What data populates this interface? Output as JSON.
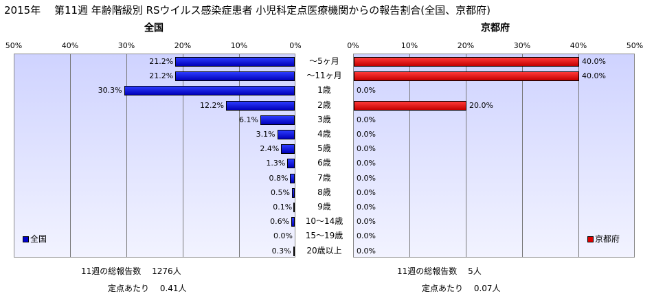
{
  "title": "2015年　 第11週 年齢階級別 RSウイルス感染症患者 小児科定点医療機関からの報告割合(全国、京都府)",
  "categories": [
    "～5ヶ月",
    "～11ヶ月",
    "1歳",
    "2歳",
    "3歳",
    "4歳",
    "5歳",
    "6歳",
    "7歳",
    "8歳",
    "9歳",
    "10～14歳",
    "15～19歳",
    "20歳以上"
  ],
  "colors": {
    "national": "#0000cc",
    "kyoto": "#dd0000"
  },
  "chart_data": [
    {
      "type": "bar",
      "title": "全国",
      "orientation": "horizontal-reversed",
      "categories": [
        "～5ヶ月",
        "～11ヶ月",
        "1歳",
        "2歳",
        "3歳",
        "4歳",
        "5歳",
        "6歳",
        "7歳",
        "8歳",
        "9歳",
        "10～14歳",
        "15～19歳",
        "20歳以上"
      ],
      "series": [
        {
          "name": "全国",
          "values": [
            21.2,
            21.2,
            30.3,
            12.2,
            6.1,
            3.1,
            2.4,
            1.3,
            0.8,
            0.5,
            0.1,
            0.6,
            0.0,
            0.3
          ]
        }
      ],
      "labels": [
        "21.2%",
        "21.2%",
        "30.3%",
        "12.2%",
        "6.1%",
        "3.1%",
        "2.4%",
        "1.3%",
        "0.8%",
        "0.5%",
        "0.1%",
        "0.6%",
        "0.0%",
        "0.3%"
      ],
      "xticks": [
        "50%",
        "40%",
        "30%",
        "20%",
        "10%",
        "0%"
      ],
      "xlim": [
        0,
        50
      ],
      "grid": true,
      "legend": "bottom-left"
    },
    {
      "type": "bar",
      "title": "京都府",
      "orientation": "horizontal",
      "categories": [
        "～5ヶ月",
        "～11ヶ月",
        "1歳",
        "2歳",
        "3歳",
        "4歳",
        "5歳",
        "6歳",
        "7歳",
        "8歳",
        "9歳",
        "10～14歳",
        "15～19歳",
        "20歳以上"
      ],
      "series": [
        {
          "name": "京都府",
          "values": [
            40.0,
            40.0,
            0.0,
            20.0,
            0.0,
            0.0,
            0.0,
            0.0,
            0.0,
            0.0,
            0.0,
            0.0,
            0.0,
            0.0
          ]
        }
      ],
      "labels": [
        "40.0%",
        "40.0%",
        "0.0%",
        "20.0%",
        "0.0%",
        "0.0%",
        "0.0%",
        "0.0%",
        "0.0%",
        "0.0%",
        "0.0%",
        "0.0%",
        "0.0%",
        "0.0%"
      ],
      "xticks": [
        "0%",
        "10%",
        "20%",
        "30%",
        "40%",
        "50%"
      ],
      "xlim": [
        0,
        50
      ],
      "grid": true,
      "legend": "bottom-right"
    }
  ],
  "footer": {
    "left_total": "11週の総報告数　 1276人",
    "left_per": "定点あたり　 0.41人",
    "right_total": "11週の総報告数　 5人",
    "right_per": "定点あたり　 0.07人"
  }
}
